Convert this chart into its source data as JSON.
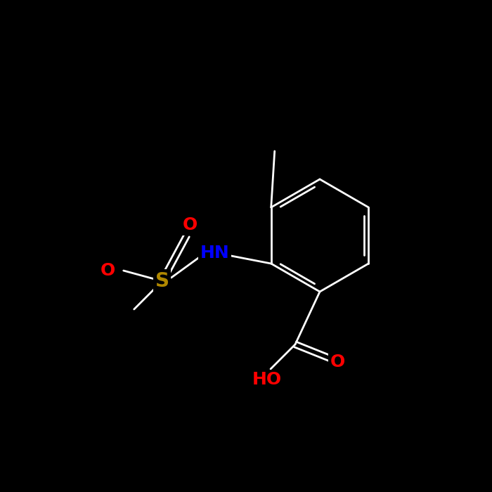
{
  "background_color": "#000000",
  "bond_color": "#ffffff",
  "bond_width": 2.0,
  "atom_colors": {
    "C": "#ffffff",
    "O": "#ff0000",
    "N": "#0000ff",
    "S": "#b08800",
    "H": "#ffffff"
  },
  "font_size": 16,
  "font_weight": "bold"
}
